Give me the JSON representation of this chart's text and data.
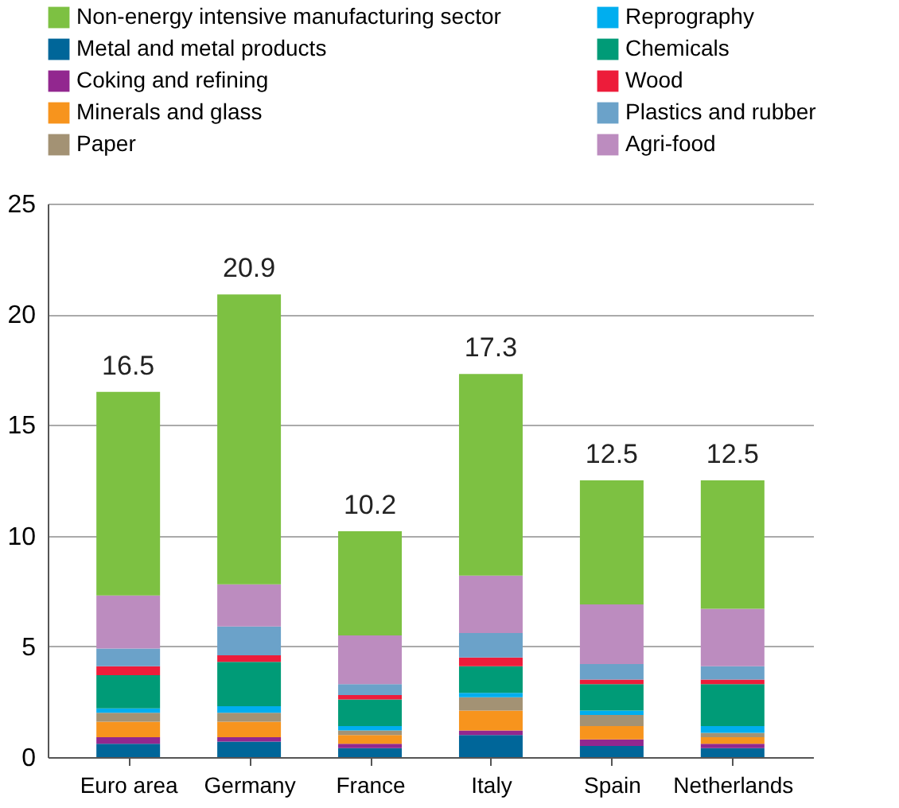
{
  "chart_data": {
    "type": "bar",
    "stacked": true,
    "categories": [
      "Euro area",
      "Germany",
      "France",
      "Italy",
      "Spain",
      "Netherlands"
    ],
    "series": [
      {
        "name": "Metal and metal products",
        "color": "#006699",
        "values": [
          0.6,
          0.7,
          0.4,
          1.0,
          0.5,
          0.4
        ]
      },
      {
        "name": "Coking and refining",
        "color": "#92278f",
        "values": [
          0.3,
          0.2,
          0.2,
          0.2,
          0.3,
          0.2
        ]
      },
      {
        "name": "Minerals and glass",
        "color": "#f7941d",
        "values": [
          0.7,
          0.7,
          0.4,
          0.9,
          0.6,
          0.3
        ]
      },
      {
        "name": "Paper",
        "color": "#a39274",
        "values": [
          0.4,
          0.4,
          0.2,
          0.6,
          0.5,
          0.2
        ]
      },
      {
        "name": "Reprography",
        "color": "#00aeef",
        "values": [
          0.2,
          0.3,
          0.2,
          0.2,
          0.2,
          0.3
        ]
      },
      {
        "name": "Chemicals",
        "color": "#009b77",
        "values": [
          1.5,
          2.0,
          1.2,
          1.2,
          1.2,
          1.9
        ]
      },
      {
        "name": "Wood",
        "color": "#ed1c3a",
        "values": [
          0.4,
          0.3,
          0.2,
          0.4,
          0.2,
          0.2
        ]
      },
      {
        "name": "Plastics and rubber",
        "color": "#6ba2c9",
        "values": [
          0.8,
          1.3,
          0.5,
          1.1,
          0.7,
          0.6
        ]
      },
      {
        "name": "Agri-food",
        "color": "#bc8cbf",
        "values": [
          2.4,
          1.9,
          2.2,
          2.6,
          2.7,
          2.6
        ]
      },
      {
        "name": "Non-energy intensive manufacturing sector",
        "color": "#7dc142",
        "values": [
          9.2,
          13.1,
          4.7,
          9.1,
          5.6,
          5.8
        ]
      }
    ],
    "totals": [
      "16.5",
      "20.9",
      "10.2",
      "17.3",
      "12.5",
      "12.5"
    ],
    "ylim": [
      0,
      25
    ],
    "yticks": [
      0,
      5,
      10,
      15,
      20,
      25
    ],
    "grid": "y",
    "legend": "top"
  }
}
